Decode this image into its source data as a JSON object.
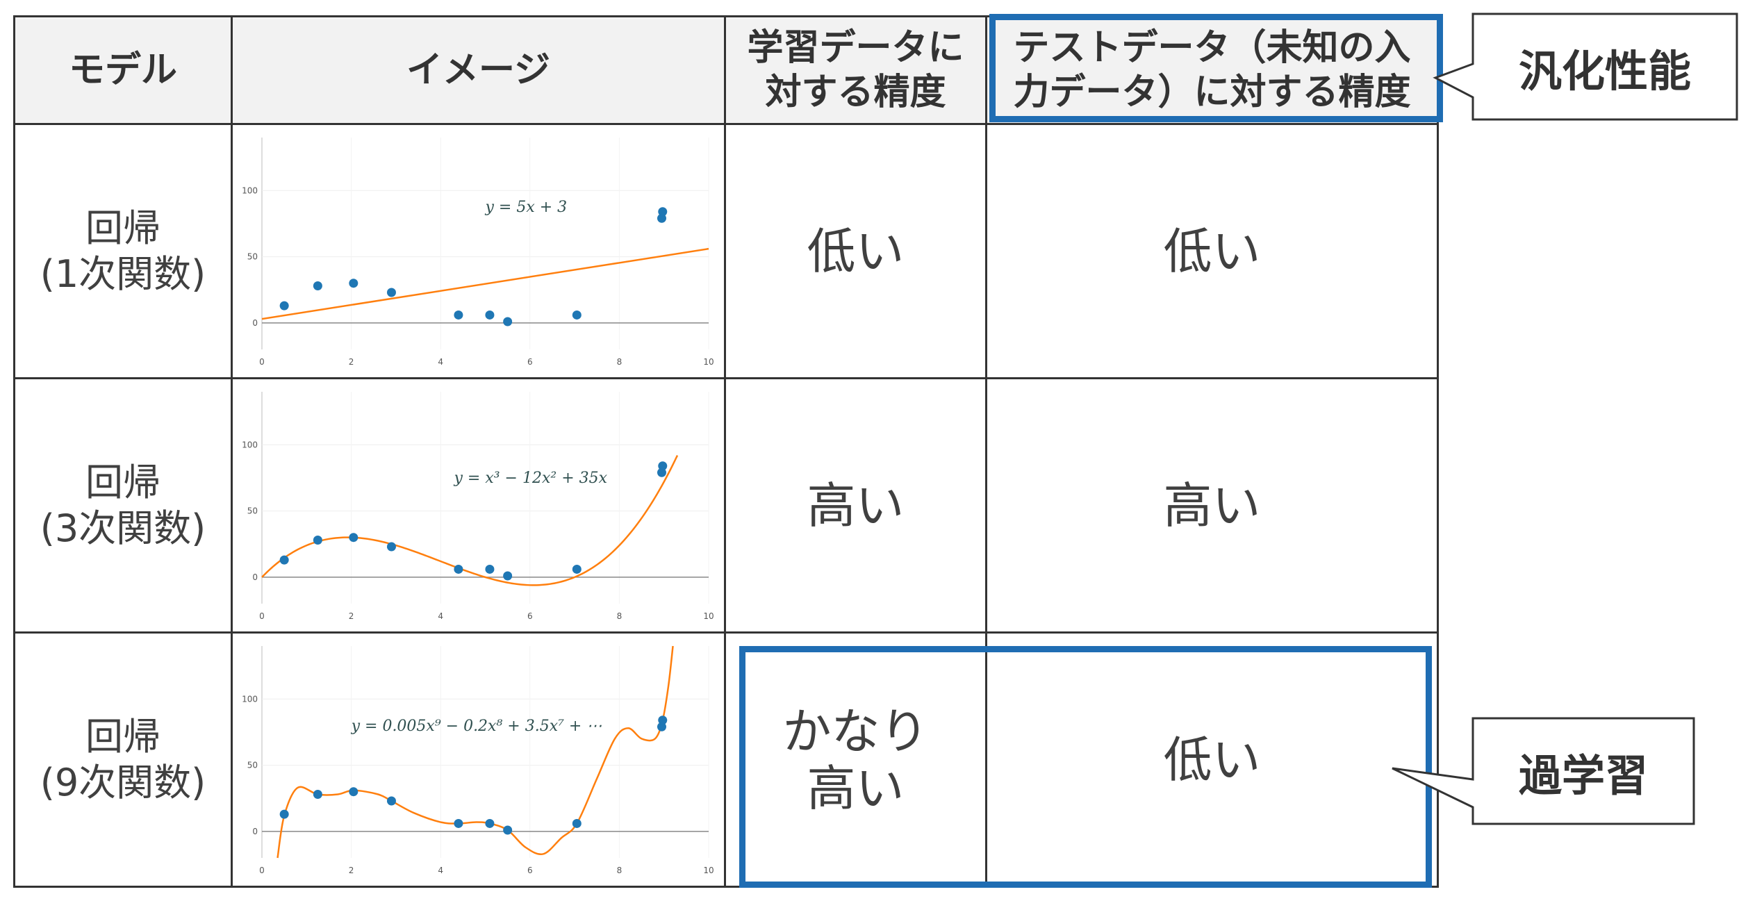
{
  "headers": {
    "model": "モデル",
    "image": "イメージ",
    "train_accuracy": [
      "学習データに",
      "対する精度"
    ],
    "test_accuracy": [
      "テストデータ（未知の入",
      "力データ）に対する精度"
    ]
  },
  "rows": [
    {
      "model": [
        "回帰",
        "(1次関数)"
      ],
      "train": [
        "低い"
      ],
      "test": "低い",
      "equation": "y = 5x + 3"
    },
    {
      "model": [
        "回帰",
        "(3次関数)"
      ],
      "train": [
        "高い"
      ],
      "test": "高い",
      "equation": "y = x³ − 12x² + 35x"
    },
    {
      "model": [
        "回帰",
        "(9次関数)"
      ],
      "train": [
        "かなり",
        "高い"
      ],
      "test": "低い",
      "equation": "y = 0.005x⁹ − 0.2x⁸ + 3.5x⁷ + ⋯"
    }
  ],
  "callouts": {
    "generalization": "汎化性能",
    "overfitting": "過学習"
  },
  "colors": {
    "highlight": "#1f6db3",
    "points": "#1f77b4",
    "curve": "#ff7f0e",
    "header_bg": "#f2f2f2"
  },
  "chart_data": [
    {
      "type": "scatter",
      "title": "",
      "xlim": [
        0,
        10
      ],
      "ylim": [
        -20,
        140
      ],
      "x_ticks": [
        0,
        2,
        4,
        6,
        8,
        10
      ],
      "y_ticks": [
        0,
        50,
        100
      ],
      "points": [
        [
          0.5,
          13
        ],
        [
          1.25,
          28
        ],
        [
          2.05,
          30
        ],
        [
          2.9,
          23
        ],
        [
          4.4,
          6
        ],
        [
          5.1,
          6
        ],
        [
          5.5,
          1
        ],
        [
          7.05,
          6
        ],
        [
          8.95,
          79
        ],
        [
          8.97,
          84
        ]
      ],
      "series": [
        {
          "fit": "linear",
          "values_x": [
            0,
            10
          ],
          "values_y": [
            3,
            56
          ]
        }
      ],
      "grid": true
    },
    {
      "type": "scatter",
      "title": "",
      "xlim": [
        0,
        10
      ],
      "ylim": [
        -20,
        140
      ],
      "x_ticks": [
        0,
        2,
        4,
        6,
        8,
        10
      ],
      "y_ticks": [
        0,
        50,
        100
      ],
      "points": [
        [
          0.5,
          13
        ],
        [
          1.25,
          28
        ],
        [
          2.05,
          30
        ],
        [
          2.9,
          23
        ],
        [
          4.4,
          6
        ],
        [
          5.1,
          6
        ],
        [
          5.5,
          1
        ],
        [
          7.05,
          6
        ],
        [
          8.95,
          79
        ],
        [
          8.97,
          84
        ]
      ],
      "series": [
        {
          "fit": "cubic",
          "coefficients": [
            1,
            -12,
            35,
            0
          ]
        }
      ],
      "grid": true
    },
    {
      "type": "scatter",
      "title": "",
      "xlim": [
        0,
        10
      ],
      "ylim": [
        -20,
        140
      ],
      "x_ticks": [
        0,
        2,
        4,
        6,
        8,
        10
      ],
      "y_ticks": [
        0,
        50,
        100
      ],
      "points": [
        [
          0.5,
          13
        ],
        [
          1.25,
          28
        ],
        [
          2.05,
          30
        ],
        [
          2.9,
          23
        ],
        [
          4.4,
          6
        ],
        [
          5.1,
          6
        ],
        [
          5.5,
          1
        ],
        [
          7.05,
          6
        ],
        [
          8.95,
          79
        ],
        [
          8.97,
          84
        ]
      ],
      "series": [
        {
          "fit": "degree-9",
          "values_x": [
            0.35,
            0.5,
            0.8,
            1.25,
            1.7,
            2.05,
            2.6,
            2.9,
            3.4,
            4.0,
            4.4,
            4.8,
            5.1,
            5.5,
            5.9,
            6.3,
            6.7,
            7.05,
            7.5,
            7.9,
            8.2,
            8.5,
            8.8,
            8.97,
            9.1,
            9.2
          ],
          "values_y": [
            -20,
            12,
            33,
            28,
            28,
            31,
            28,
            23,
            14,
            7,
            6,
            7,
            6,
            1,
            -12,
            -17,
            -5,
            6,
            40,
            70,
            78,
            70,
            70,
            84,
            110,
            140
          ]
        }
      ],
      "grid": true
    }
  ]
}
